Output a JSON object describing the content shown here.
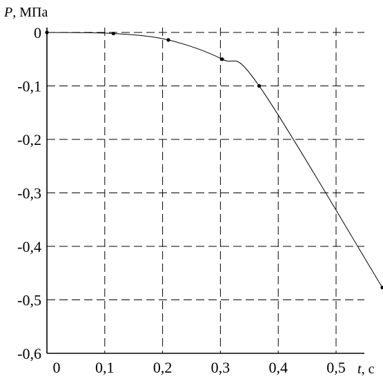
{
  "chart_data": {
    "type": "line",
    "title": "",
    "xlabel_var": "t",
    "xlabel_unit": ", с",
    "ylabel_var": "P",
    "ylabel_unit": ", МПа",
    "xlim": [
      0,
      0.55
    ],
    "ylim": [
      -0.6,
      0
    ],
    "x_ticks": [
      0,
      0.1,
      0.2,
      0.3,
      0.4,
      0.5
    ],
    "x_tick_labels": [
      "0",
      "0,1",
      "0,2",
      "0,3",
      "0,4",
      "0,5"
    ],
    "y_ticks": [
      0,
      -0.1,
      -0.2,
      -0.3,
      -0.4,
      -0.5,
      -0.6
    ],
    "y_tick_labels": [
      "0",
      "-0,1",
      "-0,2",
      "-0,3",
      "-0,4",
      "-0,5",
      "-0,6"
    ],
    "grid": true,
    "legend": "none",
    "series": [
      {
        "points": [
          {
            "x": 0.0,
            "y": 0.0
          },
          {
            "x": 0.115,
            "y": -0.002
          },
          {
            "x": 0.21,
            "y": -0.014
          },
          {
            "x": 0.303,
            "y": -0.05
          },
          {
            "x": 0.367,
            "y": -0.1
          },
          {
            "x": 0.58,
            "y": -0.477
          }
        ]
      }
    ],
    "color": "#000000"
  }
}
